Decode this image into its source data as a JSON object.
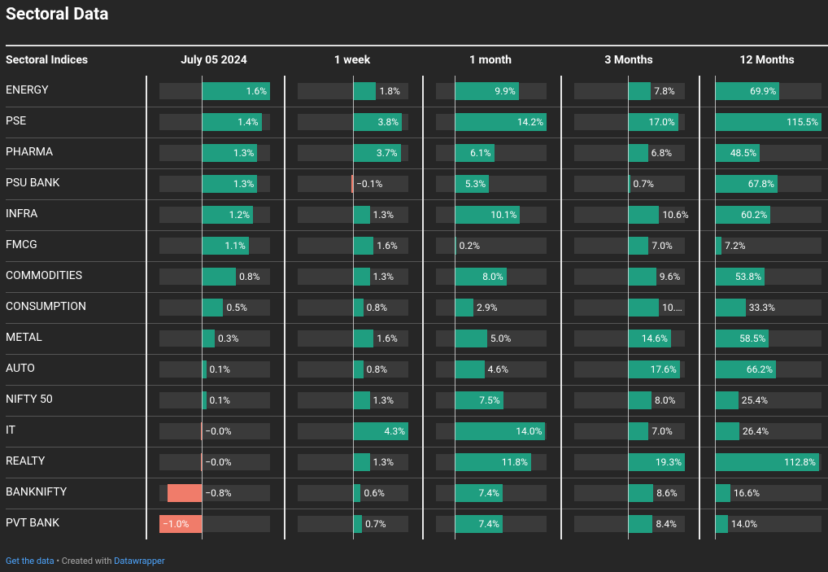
{
  "title": "Sectoral Data",
  "table": {
    "header": [
      "Sectoral Indices",
      "July 05 2024",
      "1 week",
      "1 month",
      "3 Months",
      "12 Months"
    ],
    "xlim": [
      [
        -1.0,
        1.6
      ],
      [
        -4.3,
        4.3
      ],
      [
        -2.9,
        14.2
      ],
      [
        -18.2,
        19.3
      ],
      [
        0,
        115.5
      ]
    ],
    "positive_color": "#1f9e80",
    "negative_color": "#f07c6a",
    "rows": [
      {
        "name": "ENERGY",
        "values": [
          1.6,
          1.8,
          9.9,
          7.8,
          69.9
        ],
        "value_labels": [
          "1.6%",
          "1.8%",
          "9.9%",
          "7.8%",
          "69.9%"
        ]
      },
      {
        "name": "PSE",
        "values": [
          1.4,
          3.8,
          14.2,
          17.0,
          115.5
        ],
        "value_labels": [
          "1.4%",
          "3.8%",
          "14.2%",
          "17.0%",
          "115.5%"
        ]
      },
      {
        "name": "PHARMA",
        "values": [
          1.3,
          3.7,
          6.1,
          6.8,
          48.5
        ],
        "value_labels": [
          "1.3%",
          "3.7%",
          "6.1%",
          "6.8%",
          "48.5%"
        ]
      },
      {
        "name": "PSU BANK",
        "values": [
          1.3,
          -0.1,
          5.3,
          0.7,
          67.8
        ],
        "value_labels": [
          "1.3%",
          "−0.1%",
          "5.3%",
          "0.7%",
          "67.8%"
        ]
      },
      {
        "name": "INFRA",
        "values": [
          1.2,
          1.3,
          10.1,
          10.6,
          60.2
        ],
        "value_labels": [
          "1.2%",
          "1.3%",
          "10.1%",
          "10.6%",
          "60.2%"
        ]
      },
      {
        "name": "FMCG",
        "values": [
          1.1,
          1.6,
          0.2,
          7.0,
          7.2
        ],
        "value_labels": [
          "1.1%",
          "1.6%",
          "0.2%",
          "7.0%",
          "7.2%"
        ]
      },
      {
        "name": "COMMODITIES",
        "values": [
          0.8,
          1.3,
          8.0,
          9.6,
          53.8
        ],
        "value_labels": [
          "0.8%",
          "1.3%",
          "8.0%",
          "9.6%",
          "53.8%"
        ]
      },
      {
        "name": "CONSUMPTION",
        "values": [
          0.5,
          0.8,
          2.9,
          10.5,
          33.3
        ],
        "value_labels": [
          "0.5%",
          "0.8%",
          "2.9%",
          "10.…",
          "33.3%"
        ]
      },
      {
        "name": "METAL",
        "values": [
          0.3,
          1.6,
          5.0,
          14.6,
          58.5
        ],
        "value_labels": [
          "0.3%",
          "1.6%",
          "5.0%",
          "14.6%",
          "58.5%"
        ]
      },
      {
        "name": "AUTO",
        "values": [
          0.1,
          0.8,
          4.6,
          17.6,
          66.2
        ],
        "value_labels": [
          "0.1%",
          "0.8%",
          "4.6%",
          "17.6%",
          "66.2%"
        ]
      },
      {
        "name": "NIFTY 50",
        "values": [
          0.1,
          1.3,
          7.5,
          8.0,
          25.4
        ],
        "value_labels": [
          "0.1%",
          "1.3%",
          "7.5%",
          "8.0%",
          "25.4%"
        ]
      },
      {
        "name": "IT",
        "values": [
          -0.03,
          4.3,
          14.0,
          7.0,
          26.4
        ],
        "value_labels": [
          "−0.0%",
          "4.3%",
          "14.0%",
          "7.0%",
          "26.4%"
        ]
      },
      {
        "name": "REALTY",
        "values": [
          -0.03,
          1.3,
          11.8,
          19.3,
          112.8
        ],
        "value_labels": [
          "−0.0%",
          "1.3%",
          "11.8%",
          "19.3%",
          "112.8%"
        ]
      },
      {
        "name": "BANKNIFTY",
        "values": [
          -0.8,
          0.6,
          7.4,
          8.6,
          16.6
        ],
        "value_labels": [
          "−0.8%",
          "0.6%",
          "7.4%",
          "8.6%",
          "16.6%"
        ]
      },
      {
        "name": "PVT BANK",
        "values": [
          -1.0,
          0.7,
          7.4,
          8.4,
          14.0
        ],
        "value_labels": [
          "−1.0%",
          "0.7%",
          "7.4%",
          "8.4%",
          "14.0%"
        ]
      }
    ]
  },
  "footer": {
    "link": "Get the data",
    "text": " • Created with ",
    "brand": "Datawrapper"
  }
}
